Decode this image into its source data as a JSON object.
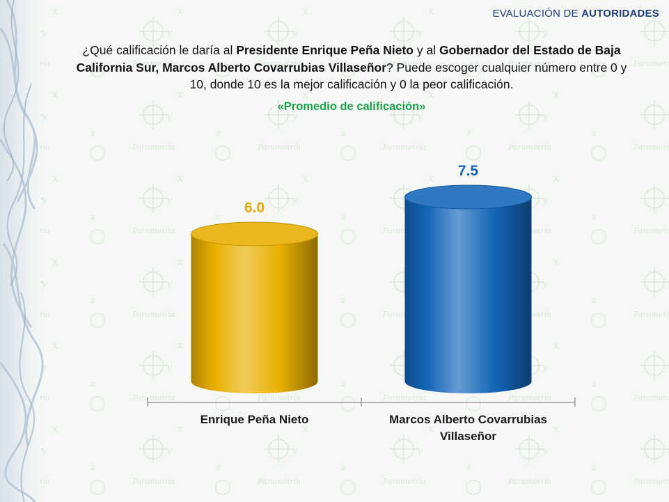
{
  "header": {
    "prefix": "EVALUACIÓN DE ",
    "emphasis": "AUTORIDADES"
  },
  "question": {
    "p1": "¿Qué calificación le daría al ",
    "b1": "Presidente Enrique Peña Nieto",
    "p2": " y al ",
    "b2": "Gobernador del Estado de Baja California Sur, Marcos Alberto Covarrubias Villaseñor",
    "p3": "? Puede escoger cualquier número entre 0 y 10, donde 10 es la mejor calificación y 0 la peor calificación."
  },
  "subtitle": "«Promedio de calificación»",
  "watermark": "Parametría",
  "chart_data": {
    "type": "bar",
    "categories": [
      "Enrique Peña Nieto",
      "Marcos Alberto Covarrubias Villaseñor"
    ],
    "values": [
      6.0,
      7.5
    ],
    "value_labels": [
      "6.0",
      "7.5"
    ],
    "ylim": [
      0,
      7.5
    ],
    "grid": false,
    "colors": [
      "#e8b000",
      "#1466b8"
    ],
    "label_colors": [
      "#e6a800",
      "#1466b8"
    ]
  }
}
